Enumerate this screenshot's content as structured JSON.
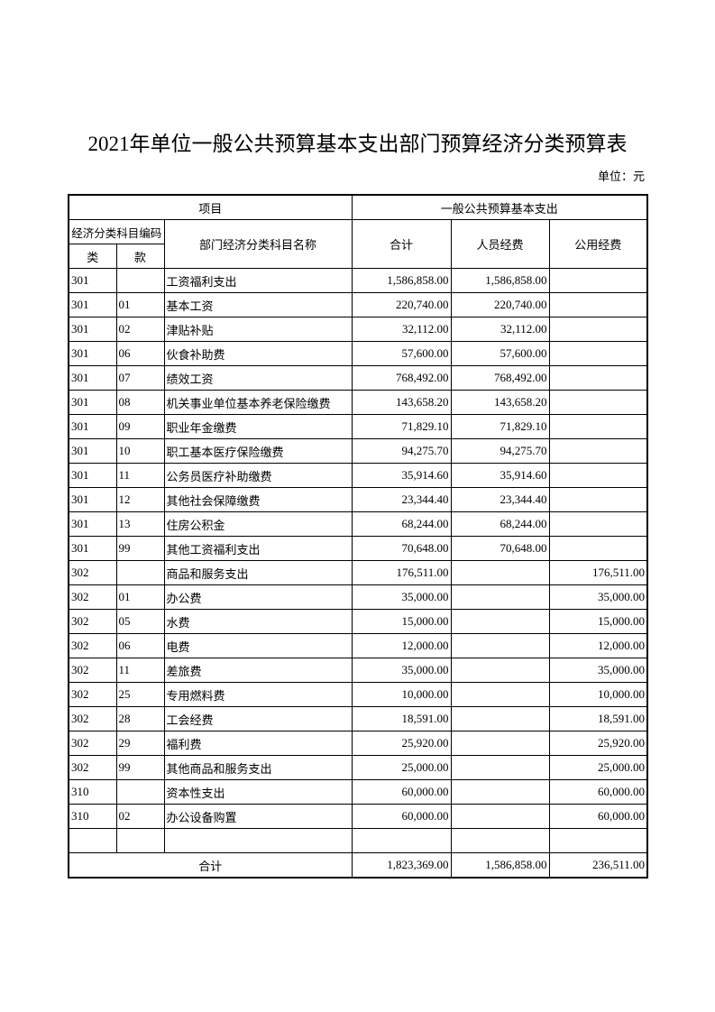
{
  "title": "2021年单位一般公共预算基本支出部门预算经济分类预算表",
  "unit": "单位：元",
  "table": {
    "header": {
      "item": "项目",
      "budget": "一般公共预算基本支出",
      "code": "经济分类科目编码",
      "name": "部门经济分类科目名称",
      "total": "合计",
      "personnel": "人员经费",
      "public": "公用经费",
      "class": "类",
      "section": "款"
    },
    "rows": [
      [
        "301",
        null,
        "工资福利支出",
        "1,586,858.00",
        "1,586,858.00",
        null
      ],
      [
        "301",
        "01",
        "基本工资",
        "220,740.00",
        "220,740.00",
        null
      ],
      [
        "301",
        "02",
        "津贴补贴",
        "32,112.00",
        "32,112.00",
        null
      ],
      [
        "301",
        "06",
        "伙食补助费",
        "57,600.00",
        "57,600.00",
        null
      ],
      [
        "301",
        "07",
        "绩效工资",
        "768,492.00",
        "768,492.00",
        null
      ],
      [
        "301",
        "08",
        "机关事业单位基本养老保险缴费",
        "143,658.20",
        "143,658.20",
        null
      ],
      [
        "301",
        "09",
        "职业年金缴费",
        "71,829.10",
        "71,829.10",
        null
      ],
      [
        "301",
        "10",
        "职工基本医疗保险缴费",
        "94,275.70",
        "94,275.70",
        null
      ],
      [
        "301",
        "11",
        "公务员医疗补助缴费",
        "35,914.60",
        "35,914.60",
        null
      ],
      [
        "301",
        "12",
        "其他社会保障缴费",
        "23,344.40",
        "23,344.40",
        null
      ],
      [
        "301",
        "13",
        "住房公积金",
        "68,244.00",
        "68,244.00",
        null
      ],
      [
        "301",
        "99",
        "其他工资福利支出",
        "70,648.00",
        "70,648.00",
        null
      ],
      [
        "302",
        null,
        "商品和服务支出",
        "176,511.00",
        null,
        "176,511.00"
      ],
      [
        "302",
        "01",
        "办公费",
        "35,000.00",
        null,
        "35,000.00"
      ],
      [
        "302",
        "05",
        "水费",
        "15,000.00",
        null,
        "15,000.00"
      ],
      [
        "302",
        "06",
        "电费",
        "12,000.00",
        null,
        "12,000.00"
      ],
      [
        "302",
        "11",
        "差旅费",
        "35,000.00",
        null,
        "35,000.00"
      ],
      [
        "302",
        "25",
        "专用燃料费",
        "10,000.00",
        null,
        "10,000.00"
      ],
      [
        "302",
        "28",
        "工会经费",
        "18,591.00",
        null,
        "18,591.00"
      ],
      [
        "302",
        "29",
        "福利费",
        "25,920.00",
        null,
        "25,920.00"
      ],
      [
        "302",
        "99",
        "其他商品和服务支出",
        "25,000.00",
        null,
        "25,000.00"
      ],
      [
        "310",
        null,
        "资本性支出",
        "60,000.00",
        null,
        "60,000.00"
      ],
      [
        "310",
        "02",
        "办公设备购置",
        "60,000.00",
        null,
        "60,000.00"
      ],
      [
        null,
        null,
        null,
        null,
        null,
        null
      ]
    ],
    "footer": {
      "label": "合计",
      "total": "1,823,369.00",
      "personnel": "1,586,858.00",
      "public": "236,511.00"
    }
  }
}
